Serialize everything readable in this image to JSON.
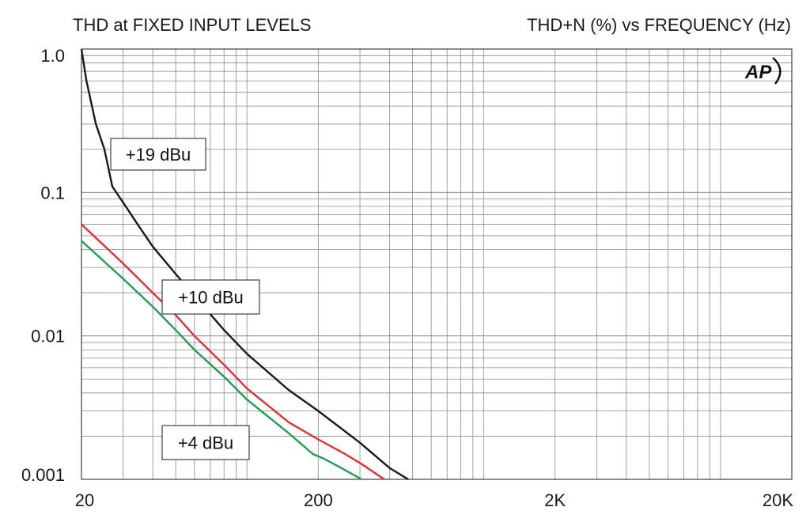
{
  "chart_data": {
    "type": "line",
    "title_left": "THD at FIXED INPUT LEVELS",
    "title_right": "THD+N (%) vs FREQUENCY (Hz)",
    "x_scale": "log",
    "y_scale": "log",
    "xlim": [
      20,
      20000
    ],
    "ylim": [
      0.001,
      1.0
    ],
    "x_ticks": [
      {
        "value": 20,
        "label": "20"
      },
      {
        "value": 200,
        "label": "200"
      },
      {
        "value": 2000,
        "label": "2K"
      },
      {
        "value": 20000,
        "label": "20K"
      }
    ],
    "y_ticks": [
      {
        "value": 1.0,
        "label": "1.0"
      },
      {
        "value": 0.1,
        "label": "0.1"
      },
      {
        "value": 0.01,
        "label": "0.01"
      },
      {
        "value": 0.001,
        "label": "0.001"
      }
    ],
    "grid": true,
    "logo": "AP",
    "series": [
      {
        "name": "+19 dBu",
        "color": "#1a1a1a",
        "points": [
          [
            20,
            1.0
          ],
          [
            21,
            0.6
          ],
          [
            23,
            0.3
          ],
          [
            25,
            0.2
          ],
          [
            27,
            0.11
          ],
          [
            30,
            0.085
          ],
          [
            35,
            0.058
          ],
          [
            40,
            0.042
          ],
          [
            50,
            0.027
          ],
          [
            60,
            0.019
          ],
          [
            80,
            0.011
          ],
          [
            100,
            0.0075
          ],
          [
            150,
            0.0042
          ],
          [
            200,
            0.003
          ],
          [
            300,
            0.0018
          ],
          [
            400,
            0.0012
          ],
          [
            480,
            0.001
          ]
        ]
      },
      {
        "name": "+10 dBu",
        "color": "#e03030",
        "points": [
          [
            20,
            0.06
          ],
          [
            30,
            0.032
          ],
          [
            40,
            0.02
          ],
          [
            50,
            0.014
          ],
          [
            60,
            0.01
          ],
          [
            80,
            0.0063
          ],
          [
            100,
            0.0043
          ],
          [
            150,
            0.0025
          ],
          [
            200,
            0.0019
          ],
          [
            260,
            0.0015
          ],
          [
            300,
            0.0013
          ],
          [
            380,
            0.001
          ]
        ]
      },
      {
        "name": "+4 dBu",
        "color": "#1f9e52",
        "points": [
          [
            20,
            0.046
          ],
          [
            30,
            0.025
          ],
          [
            40,
            0.016
          ],
          [
            50,
            0.011
          ],
          [
            60,
            0.008
          ],
          [
            80,
            0.0052
          ],
          [
            100,
            0.0036
          ],
          [
            150,
            0.0021
          ],
          [
            190,
            0.0015
          ],
          [
            210,
            0.0014
          ],
          [
            250,
            0.0012
          ],
          [
            305,
            0.001
          ]
        ]
      }
    ],
    "annotations": [
      {
        "text": "+19 dBu",
        "series": "+19 dBu"
      },
      {
        "text": "+10 dBu",
        "series": "+10 dBu"
      },
      {
        "text": "+4 dBu",
        "series": "+4 dBu"
      }
    ]
  }
}
